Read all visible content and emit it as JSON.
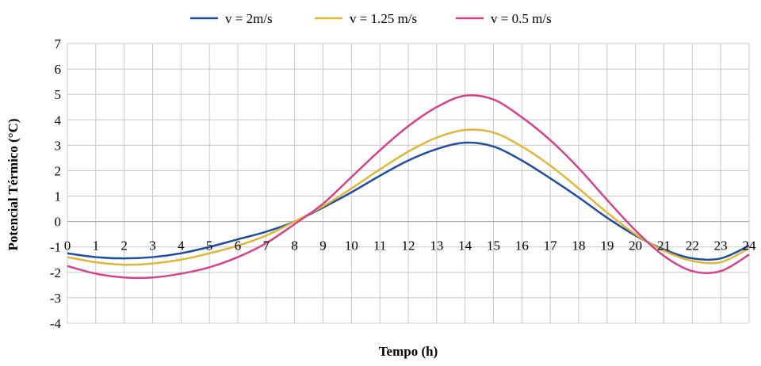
{
  "chart_data": {
    "type": "line",
    "xlabel": "Tempo (h)",
    "ylabel": "Potencial Térmico (°C)",
    "xlim": [
      0,
      24
    ],
    "ylim": [
      -4,
      7
    ],
    "x_ticks": [
      "0",
      "1",
      "2",
      "3",
      "4",
      "5",
      "6",
      "7",
      "8",
      "9",
      "10",
      "11",
      "12",
      "13",
      "14",
      "15",
      "16",
      "17",
      "18",
      "19",
      "20",
      "21",
      "22",
      "23",
      "24"
    ],
    "y_ticks": [
      "7",
      "6",
      "5",
      "4",
      "3",
      "2",
      "1",
      "0",
      "-1",
      "-2",
      "-3",
      "-4"
    ],
    "grid": true,
    "legend_position": "top",
    "x": [
      0,
      1,
      2,
      3,
      4,
      5,
      6,
      7,
      8,
      9,
      10,
      11,
      12,
      13,
      14,
      15,
      16,
      17,
      18,
      19,
      20,
      21,
      22,
      23,
      24
    ],
    "series": [
      {
        "name": "v = 2m/s",
        "color": "#1f4ea1",
        "values": [
          -1.25,
          -1.4,
          -1.45,
          -1.4,
          -1.25,
          -1.0,
          -0.7,
          -0.4,
          0.0,
          0.55,
          1.15,
          1.8,
          2.4,
          2.85,
          3.1,
          2.95,
          2.4,
          1.7,
          0.95,
          0.15,
          -0.55,
          -1.1,
          -1.45,
          -1.45,
          -0.95
        ]
      },
      {
        "name": "v = 1.25 m/s",
        "color": "#e0b63a",
        "values": [
          -1.4,
          -1.6,
          -1.7,
          -1.65,
          -1.5,
          -1.25,
          -0.95,
          -0.55,
          0.0,
          0.6,
          1.3,
          2.05,
          2.75,
          3.3,
          3.6,
          3.5,
          2.95,
          2.2,
          1.3,
          0.35,
          -0.5,
          -1.15,
          -1.55,
          -1.6,
          -1.05
        ]
      },
      {
        "name": "v = 0.5 m/s",
        "color": "#d6418b",
        "values": [
          -1.75,
          -2.05,
          -2.2,
          -2.2,
          -2.05,
          -1.8,
          -1.4,
          -0.85,
          -0.1,
          0.7,
          1.75,
          2.8,
          3.75,
          4.5,
          4.95,
          4.8,
          4.1,
          3.2,
          2.1,
          0.85,
          -0.35,
          -1.35,
          -1.95,
          -1.95,
          -1.3
        ]
      }
    ]
  }
}
